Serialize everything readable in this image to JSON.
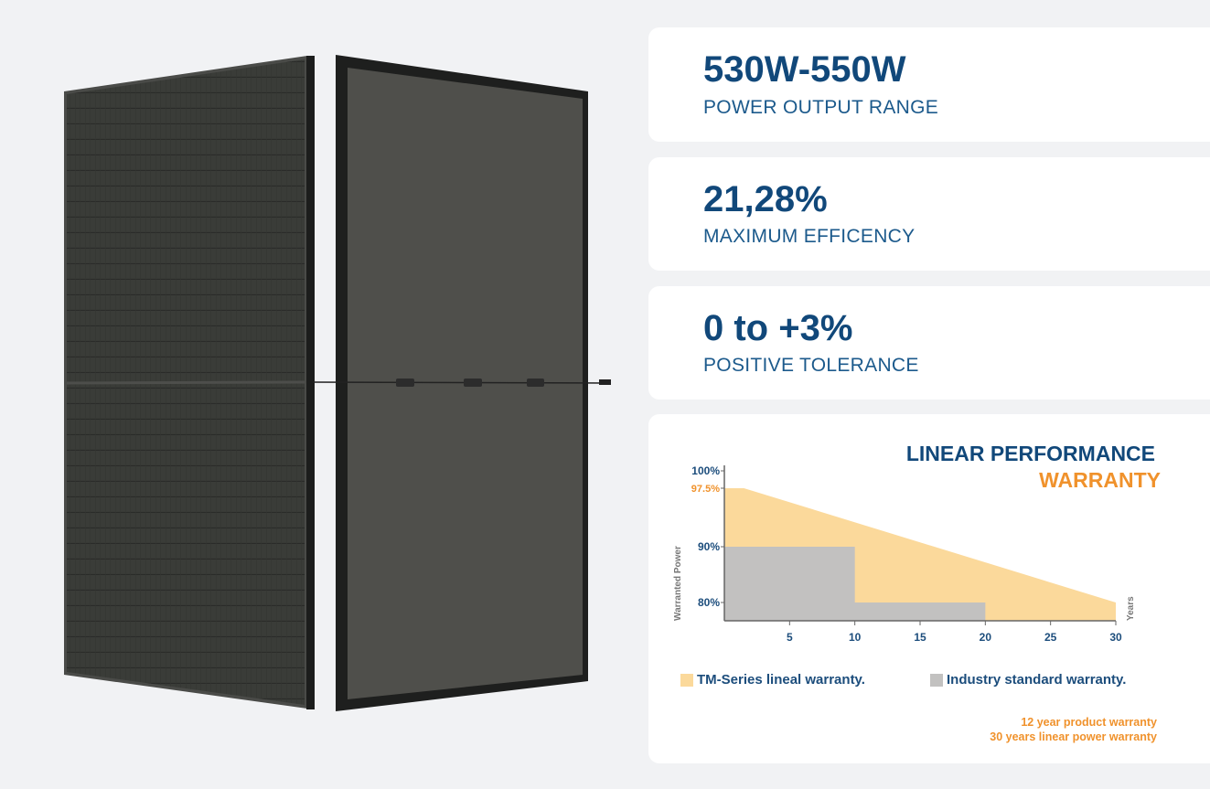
{
  "stats": [
    {
      "value": "530W-550W",
      "label": "POWER OUTPUT RANGE"
    },
    {
      "value": "21,28%",
      "label": "MAXIMUM EFFICENCY"
    },
    {
      "value": "0 to +3%",
      "label": "POSITIVE TOLERANCE"
    }
  ],
  "chart_data": {
    "type": "area",
    "title_line1": "LINEAR PERFORMANCE",
    "title_line2": "WARRANTY",
    "xlabel": "Years",
    "ylabel": "Warranted Power",
    "xlim": [
      0,
      30
    ],
    "x_ticks": [
      "5",
      "10",
      "15",
      "20",
      "25",
      "30"
    ],
    "y_ticks": [
      "100%",
      "97.5%",
      "90%",
      "80%"
    ],
    "series": [
      {
        "name": "TM-Series lineal warranty.",
        "color": "#fbd99b",
        "points": [
          [
            0,
            97.5
          ],
          [
            1.5,
            97.5
          ],
          [
            30,
            80
          ]
        ]
      },
      {
        "name": "Industry standard warranty.",
        "color": "#c2c1c0",
        "points": [
          [
            0,
            90
          ],
          [
            10,
            90
          ],
          [
            10,
            80
          ],
          [
            20,
            80
          ]
        ]
      }
    ],
    "colors": {
      "title": "#11487a",
      "accent": "#f0922c"
    }
  },
  "notes": [
    "12 year product warranty",
    "30 years linear power warranty"
  ]
}
